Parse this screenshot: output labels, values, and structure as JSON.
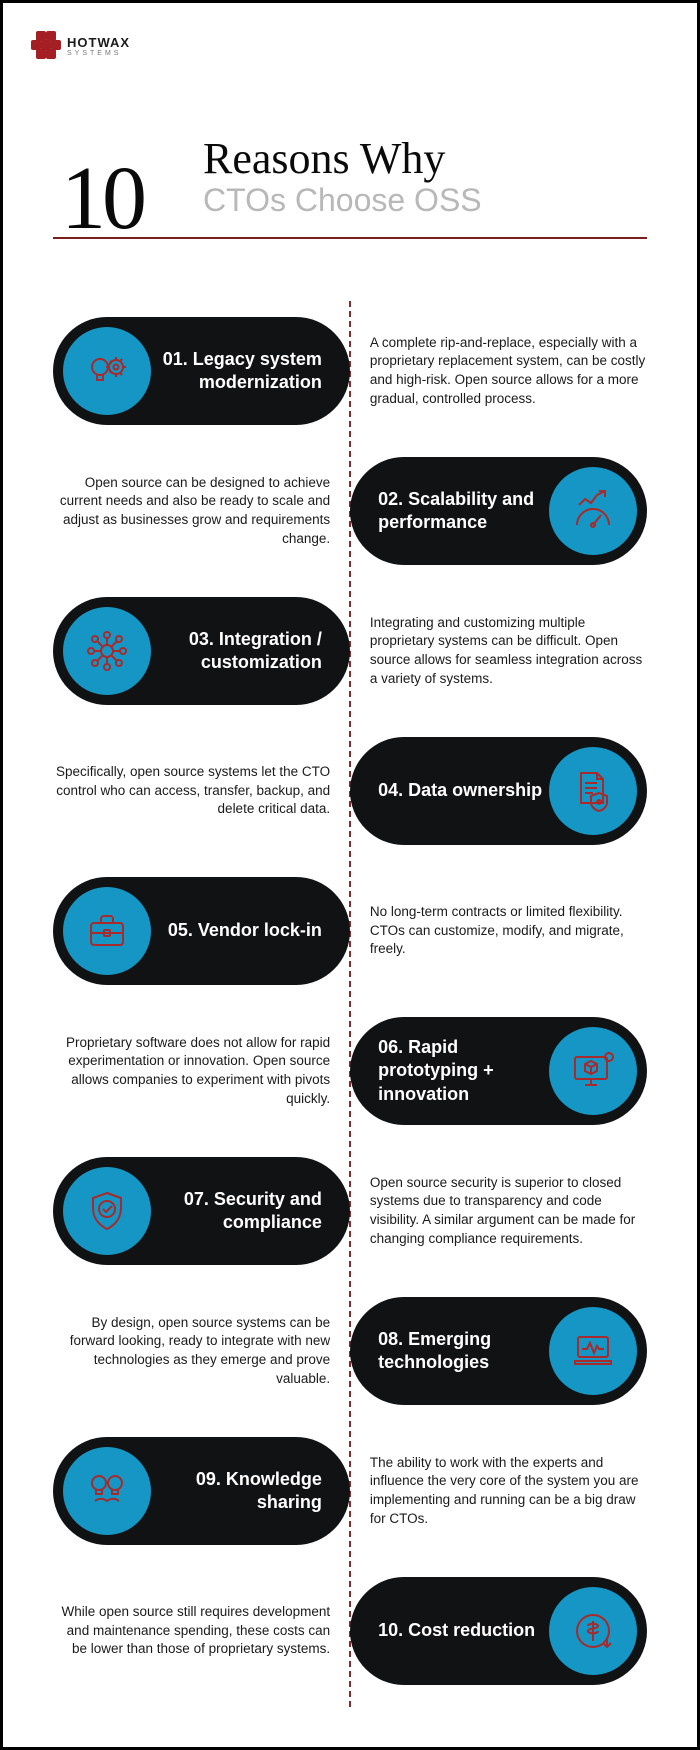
{
  "brand": {
    "name": "HOTWAX",
    "sub": "SYSTEMS"
  },
  "header": {
    "number": "10",
    "title_line1": "Reasons Why",
    "title_line2": "CTOs Choose OSS"
  },
  "colors": {
    "accent_blue": "#1596c4",
    "dark": "#111214",
    "icon_stroke": "#a82a2a",
    "rule": "#7a1e1e",
    "dash": "#8a2a2a"
  },
  "items": [
    {
      "side": "left",
      "icon": "lightbulb-gear-icon",
      "title": "01. Legacy system modernization",
      "desc": "A complete rip-and-replace, especially with a proprietary replacement system, can be costly and high-risk. Open source allows for a more gradual, controlled process."
    },
    {
      "side": "right",
      "icon": "gauge-graph-icon",
      "title": "02. Scalability and performance",
      "desc": "Open source can be designed to achieve current needs and also be ready to scale and adjust as businesses grow and requirements change."
    },
    {
      "side": "left",
      "icon": "network-gear-icon",
      "title": "03. Integration / customization",
      "desc": "Integrating and customizing multiple proprietary systems can be difficult. Open source allows for seamless integration across a variety of systems."
    },
    {
      "side": "right",
      "icon": "document-shield-icon",
      "title": "04. Data ownership",
      "desc": "Specifically, open source systems let the CTO control who can access, transfer, backup, and delete critical data."
    },
    {
      "side": "left",
      "icon": "briefcase-icon",
      "title": "05.   Vendor lock-in",
      "desc": "No long-term contracts or limited flexibility. CTOs can customize, modify, and migrate, freely."
    },
    {
      "side": "right",
      "icon": "monitor-cube-icon",
      "title": "06. Rapid prototyping + innovation",
      "desc": "Proprietary software does not allow for rapid experimentation or innovation. Open source allows companies to experiment with pivots quickly."
    },
    {
      "side": "left",
      "icon": "shield-check-icon",
      "title": "07. Security and compliance",
      "desc": "Open source security is superior to closed systems due to transparency and code visibility. A similar argument can be made for changing compliance requirements."
    },
    {
      "side": "right",
      "icon": "laptop-pulse-icon",
      "title": "08. Emerging technologies",
      "desc": "By design, open source systems can be forward looking, ready to integrate with new technologies as they emerge and prove valuable."
    },
    {
      "side": "left",
      "icon": "handshake-bulb-icon",
      "title": "09. Knowledge sharing",
      "desc": "The ability to work with the experts and influence the very core of the system you are implementing and running can be a big draw for CTOs."
    },
    {
      "side": "right",
      "icon": "dollar-down-icon",
      "title": "10. Cost reduction",
      "desc": "While open source still requires development and maintenance spending, these costs can be lower than those of proprietary systems."
    }
  ]
}
